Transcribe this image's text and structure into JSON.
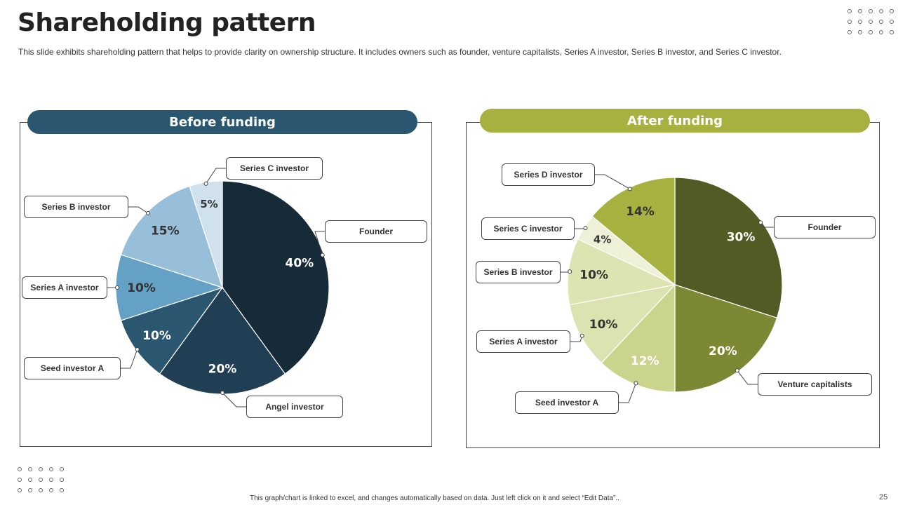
{
  "slide": {
    "title": "Shareholding pattern",
    "subtitle": "This slide exhibits shareholding pattern that helps to provide clarity on ownership structure. It includes owners such as founder, venture capitalists, Series A investor, Series B investor, and Series C investor.",
    "footer": "This graph/chart is linked to excel, and changes automatically based on data. Just left click on it and select “Edit Data”..",
    "page_number": "25"
  },
  "chart_data": [
    {
      "type": "pie",
      "title": "Before funding",
      "header_color": "#2b5670",
      "labels": [
        "Founder",
        "Angel investor",
        "Seed investor A",
        "Series A investor",
        "Series B investor",
        "Series C investor"
      ],
      "values": [
        40,
        20,
        10,
        10,
        15,
        5
      ],
      "value_labels": [
        "40%",
        "20%",
        "10%",
        "10%",
        "15%",
        "5%"
      ],
      "colors": [
        "#172a38",
        "#213f54",
        "#2b5670",
        "#65a0c5",
        "#98bfd9",
        "#cfe1ec"
      ],
      "label_colors": [
        "#ffffff",
        "#ffffff",
        "#ffffff",
        "#333333",
        "#333333",
        "#333333"
      ]
    },
    {
      "type": "pie",
      "title": "After funding",
      "header_color": "#a6b13f",
      "labels": [
        "Founder",
        "Venture capitalists",
        "Seed investor A",
        "Series A investor",
        "Series B investor",
        "Series C investor",
        "Series D investor"
      ],
      "values": [
        30,
        20,
        12,
        10,
        10,
        4,
        14
      ],
      "value_labels": [
        "30%",
        "20%",
        "12%",
        "10%",
        "10%",
        "4%",
        "14%"
      ],
      "colors": [
        "#525b23",
        "#7c8833",
        "#cbd48d",
        "#dce3b1",
        "#dde4b1",
        "#eef1d8",
        "#a6b13f"
      ],
      "label_colors": [
        "#ffffff",
        "#ffffff",
        "#ffffff",
        "#333333",
        "#333333",
        "#333333",
        "#333333"
      ]
    }
  ]
}
